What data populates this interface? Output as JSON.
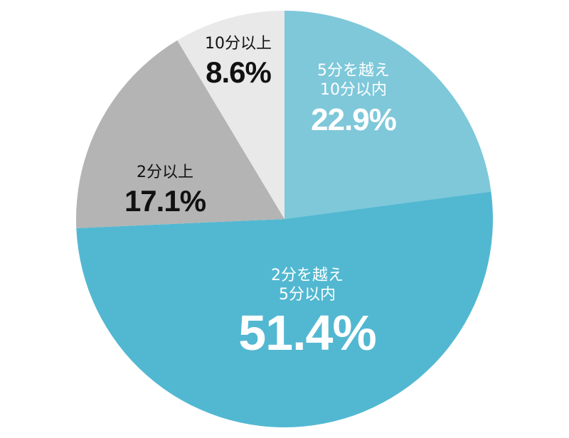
{
  "chart_data": {
    "type": "pie",
    "categories": [
      [
        "5分を越え",
        "10分以内"
      ],
      [
        "2分を越え",
        "5分以内"
      ],
      [
        "2分以上"
      ],
      [
        "10分以上"
      ]
    ],
    "values": [
      22.9,
      51.4,
      17.1,
      8.6
    ],
    "value_labels": [
      "22.9%",
      "51.4%",
      "17.1%",
      "8.6%"
    ],
    "colors": [
      "#7ec8da",
      "#52b8d1",
      "#b4b4b4",
      "#e9e9e9"
    ]
  }
}
